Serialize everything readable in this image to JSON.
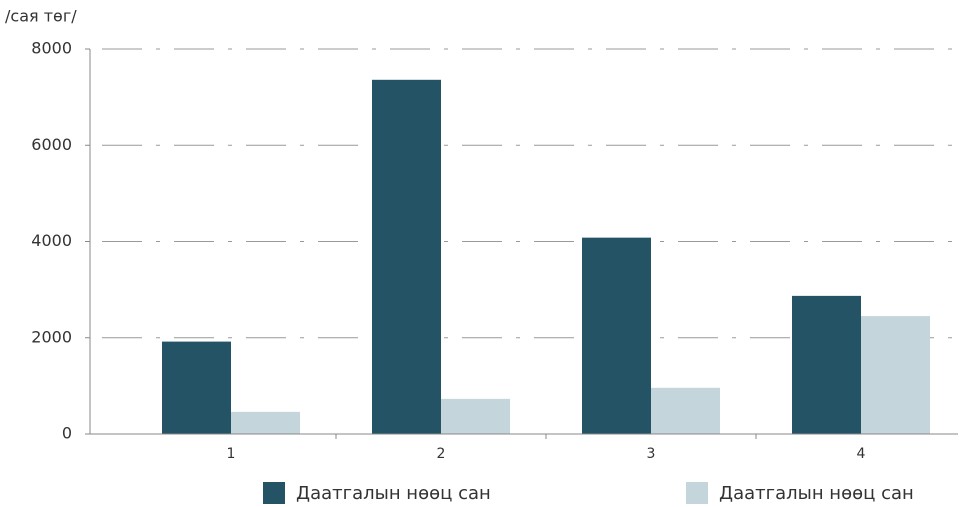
{
  "chart_data": {
    "type": "bar",
    "y_label": "/сая төг/",
    "categories": [
      "1",
      "2",
      "3",
      "4"
    ],
    "series": [
      {
        "name": "Даатгалын нөөц сан",
        "color": "#245366",
        "values": [
          1920,
          7360,
          4080,
          2870
        ]
      },
      {
        "name": "Даатгалын нөөц сан",
        "color": "#c5d5dc",
        "values": [
          460,
          730,
          960,
          2450
        ]
      }
    ],
    "ylim": [
      0,
      8000
    ],
    "yticks": [
      0,
      2000,
      4000,
      6000,
      8000
    ],
    "grid": true
  }
}
